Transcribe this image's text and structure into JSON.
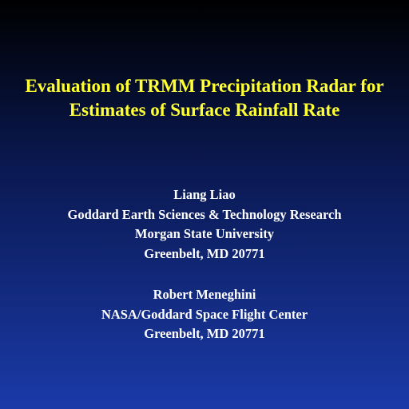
{
  "title": [
    "Evaluation of TRMM Precipitation Radar for",
    "Estimates of Surface Rainfall Rate"
  ],
  "authors": [
    {
      "lines": [
        "Liang Liao",
        "Goddard Earth Sciences & Technology Research",
        "Morgan State University",
        "Greenbelt, MD 20771"
      ]
    },
    {
      "lines": [
        "Robert Meneghini",
        "NASA/Goddard Space Flight Center",
        "Greenbelt, MD 20771"
      ]
    }
  ]
}
